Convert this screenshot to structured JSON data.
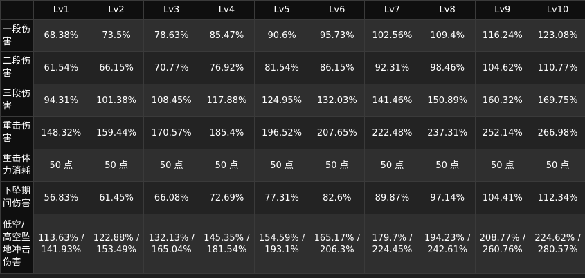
{
  "table": {
    "headers": [
      "",
      "Lv1",
      "Lv2",
      "Lv3",
      "Lv4",
      "Lv5",
      "Lv6",
      "Lv7",
      "Lv8",
      "Lv9",
      "Lv10"
    ],
    "rows": [
      {
        "label": "一段伤害",
        "values": [
          "68.38%",
          "73.5%",
          "78.63%",
          "85.47%",
          "90.6%",
          "95.73%",
          "102.56%",
          "109.4%",
          "116.24%",
          "123.08%"
        ]
      },
      {
        "label": "二段伤害",
        "values": [
          "61.54%",
          "66.15%",
          "70.77%",
          "76.92%",
          "81.54%",
          "86.15%",
          "92.31%",
          "98.46%",
          "104.62%",
          "110.77%"
        ]
      },
      {
        "label": "三段伤害",
        "values": [
          "94.31%",
          "101.38%",
          "108.45%",
          "117.88%",
          "124.95%",
          "132.03%",
          "141.46%",
          "150.89%",
          "160.32%",
          "169.75%"
        ]
      },
      {
        "label": "重击伤害",
        "values": [
          "148.32%",
          "159.44%",
          "170.57%",
          "185.4%",
          "196.52%",
          "207.65%",
          "222.48%",
          "237.31%",
          "252.14%",
          "266.98%"
        ]
      },
      {
        "label": "重击体力消耗",
        "values": [
          "50 点",
          "50 点",
          "50 点",
          "50 点",
          "50 点",
          "50 点",
          "50 点",
          "50 点",
          "50 点",
          "50 点"
        ]
      },
      {
        "label": "下坠期间伤害",
        "values": [
          "56.83%",
          "61.45%",
          "66.08%",
          "72.69%",
          "77.31%",
          "82.6%",
          "89.87%",
          "97.14%",
          "104.41%",
          "112.34%"
        ]
      },
      {
        "label": "低空/高空坠地冲击伤害",
        "values": [
          "113.63% / 141.93%",
          "122.88% / 153.49%",
          "132.13% / 165.04%",
          "145.35% / 181.54%",
          "154.59% / 193.1%",
          "165.17% / 206.3%",
          "179.7% / 224.45%",
          "194.23% / 242.61%",
          "208.77% / 260.76%",
          "224.62% / 280.57%"
        ]
      }
    ]
  }
}
